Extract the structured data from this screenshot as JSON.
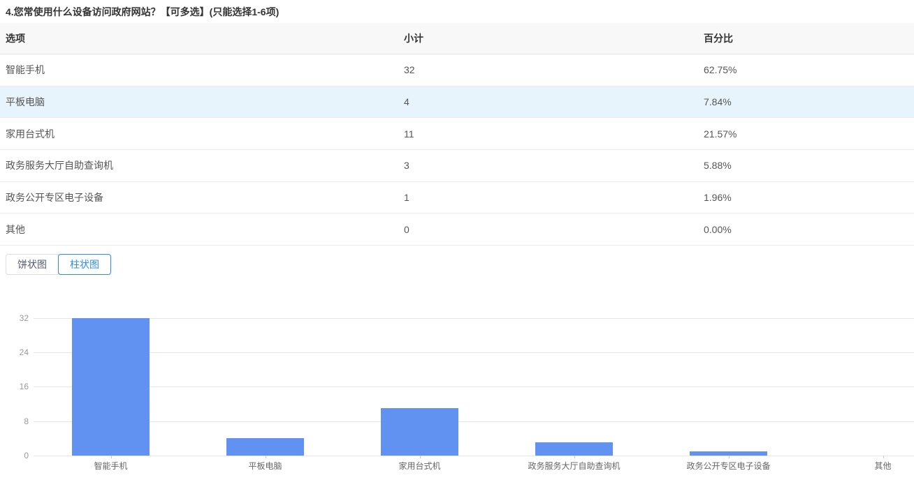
{
  "question": {
    "title": "4.您常使用什么设备访问政府网站？【可多选】(只能选择1-6项)"
  },
  "table": {
    "headers": [
      "选项",
      "小计",
      "百分比"
    ],
    "rows": [
      {
        "option": "智能手机",
        "count": "32",
        "percent": "62.75%",
        "highlighted": false
      },
      {
        "option": "平板电脑",
        "count": "4",
        "percent": "7.84%",
        "highlighted": true
      },
      {
        "option": "家用台式机",
        "count": "11",
        "percent": "21.57%",
        "highlighted": false
      },
      {
        "option": "政务服务大厅自助查询机",
        "count": "3",
        "percent": "5.88%",
        "highlighted": false
      },
      {
        "option": "政务公开专区电子设备",
        "count": "1",
        "percent": "1.96%",
        "highlighted": false
      },
      {
        "option": "其他",
        "count": "0",
        "percent": "0.00%",
        "highlighted": false
      }
    ]
  },
  "chart_toggle": {
    "pie_label": "饼状图",
    "bar_label": "柱状图",
    "active": "柱状图"
  },
  "colors": {
    "accent": "#2d8cf0",
    "bar": "#6191f1",
    "row_highlight": "#e7f4fc",
    "gridline": "#e6e6e6"
  },
  "chart_data": {
    "type": "bar",
    "title": "",
    "xlabel": "",
    "ylabel": "",
    "categories": [
      "智能手机",
      "平板电脑",
      "家用台式机",
      "政务服务大厅自助查询机",
      "政务公开专区电子设备",
      "其他"
    ],
    "values": [
      32,
      4,
      11,
      3,
      1,
      0
    ],
    "ylim": [
      0,
      32
    ],
    "y_ticks": [
      0,
      8,
      16,
      24,
      32
    ],
    "grid": true,
    "legend_position": "none",
    "bar_color": "#6191f1"
  }
}
